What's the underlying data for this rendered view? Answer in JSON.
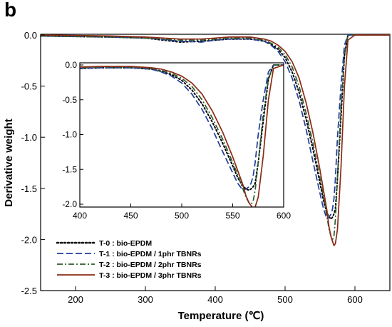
{
  "panel_label": "b",
  "chart_data": {
    "type": "line",
    "xlabel": "Temperature (℃)",
    "ylabel": "Derivative weight",
    "xlim": [
      150,
      650
    ],
    "ylim": [
      -2.5,
      0.05
    ],
    "xticks": [
      200,
      300,
      400,
      500,
      600
    ],
    "yticks": [
      0.0,
      -0.5,
      -1.0,
      -1.5,
      -2.0,
      -2.5
    ],
    "ytick_labels": [
      "0.0",
      "-0.5",
      "-1.0",
      "-1.5",
      "-2.0",
      "-2.5"
    ],
    "grid": false,
    "legend": "bottom-left",
    "series": [
      {
        "name": "T-0 : bio-EPDM",
        "color": "#000000",
        "dash": "dotted",
        "x": [
          150,
          250,
          300,
          350,
          380,
          400,
          420,
          450,
          470,
          480,
          490,
          500,
          510,
          520,
          530,
          540,
          550,
          555,
          560,
          563,
          566,
          568,
          570,
          572,
          575,
          580,
          585,
          590,
          600,
          650
        ],
        "y": [
          -0.01,
          -0.02,
          -0.03,
          -0.07,
          -0.06,
          -0.05,
          -0.04,
          -0.04,
          -0.06,
          -0.09,
          -0.14,
          -0.22,
          -0.36,
          -0.56,
          -0.82,
          -1.12,
          -1.45,
          -1.62,
          -1.74,
          -1.78,
          -1.8,
          -1.78,
          -1.75,
          -1.7,
          -1.4,
          -0.8,
          -0.2,
          0.0,
          0.0,
          0.0
        ]
      },
      {
        "name": "T-1 : bio-EPDM / 1phr TBNRs",
        "color": "#1f3d99",
        "dash": "dashed",
        "x": [
          150,
          250,
          300,
          350,
          380,
          400,
          420,
          450,
          470,
          480,
          490,
          500,
          510,
          520,
          530,
          540,
          550,
          555,
          560,
          563,
          566,
          568,
          570,
          572,
          575,
          580,
          585,
          590,
          600,
          650
        ],
        "y": [
          -0.01,
          -0.02,
          -0.03,
          -0.06,
          -0.07,
          -0.05,
          -0.04,
          -0.04,
          -0.06,
          -0.1,
          -0.16,
          -0.26,
          -0.42,
          -0.64,
          -0.92,
          -1.24,
          -1.55,
          -1.7,
          -1.8,
          -1.78,
          -1.75,
          -1.7,
          -1.6,
          -1.4,
          -1.0,
          -0.5,
          -0.1,
          0.0,
          0.0,
          0.0
        ]
      },
      {
        "name": "T-2 : bio-EPDM / 2phr TBNRs",
        "color": "#2f5a2f",
        "dash": "dashdot",
        "x": [
          150,
          250,
          300,
          350,
          380,
          400,
          420,
          450,
          470,
          480,
          490,
          500,
          510,
          520,
          530,
          540,
          550,
          555,
          560,
          563,
          566,
          568,
          570,
          572,
          575,
          580,
          585,
          590,
          600,
          650
        ],
        "y": [
          -0.01,
          -0.02,
          -0.03,
          -0.05,
          -0.05,
          -0.04,
          -0.03,
          -0.03,
          -0.05,
          -0.08,
          -0.12,
          -0.19,
          -0.31,
          -0.5,
          -0.76,
          -1.06,
          -1.4,
          -1.58,
          -1.78,
          -1.9,
          -1.98,
          -2.0,
          -1.96,
          -1.8,
          -1.4,
          -0.7,
          -0.2,
          0.0,
          0.0,
          0.0
        ]
      },
      {
        "name": "T-3 : bio-EPDM / 3phr TBNRs",
        "color": "#8b2a14",
        "dash": "solid",
        "x": [
          150,
          250,
          300,
          350,
          380,
          400,
          420,
          450,
          470,
          480,
          490,
          500,
          510,
          520,
          530,
          540,
          550,
          555,
          560,
          563,
          566,
          568,
          570,
          572,
          575,
          580,
          585,
          590,
          600,
          650
        ],
        "y": [
          0.0,
          -0.01,
          -0.02,
          -0.04,
          -0.04,
          -0.03,
          -0.02,
          -0.02,
          -0.04,
          -0.06,
          -0.1,
          -0.16,
          -0.26,
          -0.42,
          -0.66,
          -0.96,
          -1.32,
          -1.52,
          -1.72,
          -1.88,
          -1.98,
          -2.02,
          -2.06,
          -2.04,
          -1.9,
          -1.3,
          -0.5,
          -0.05,
          0.0,
          0.0
        ]
      }
    ],
    "inset": {
      "xlim": [
        400,
        600
      ],
      "ylim": [
        -2.05,
        0.0
      ],
      "xticks": [
        400,
        450,
        500,
        550,
        600
      ],
      "yticks": [
        0.0,
        -0.5,
        -1.0,
        -1.5,
        -2.0
      ],
      "ytick_labels": [
        "0.0",
        "-0.5",
        "-1.0",
        "-1.5",
        "-2.0"
      ]
    }
  }
}
